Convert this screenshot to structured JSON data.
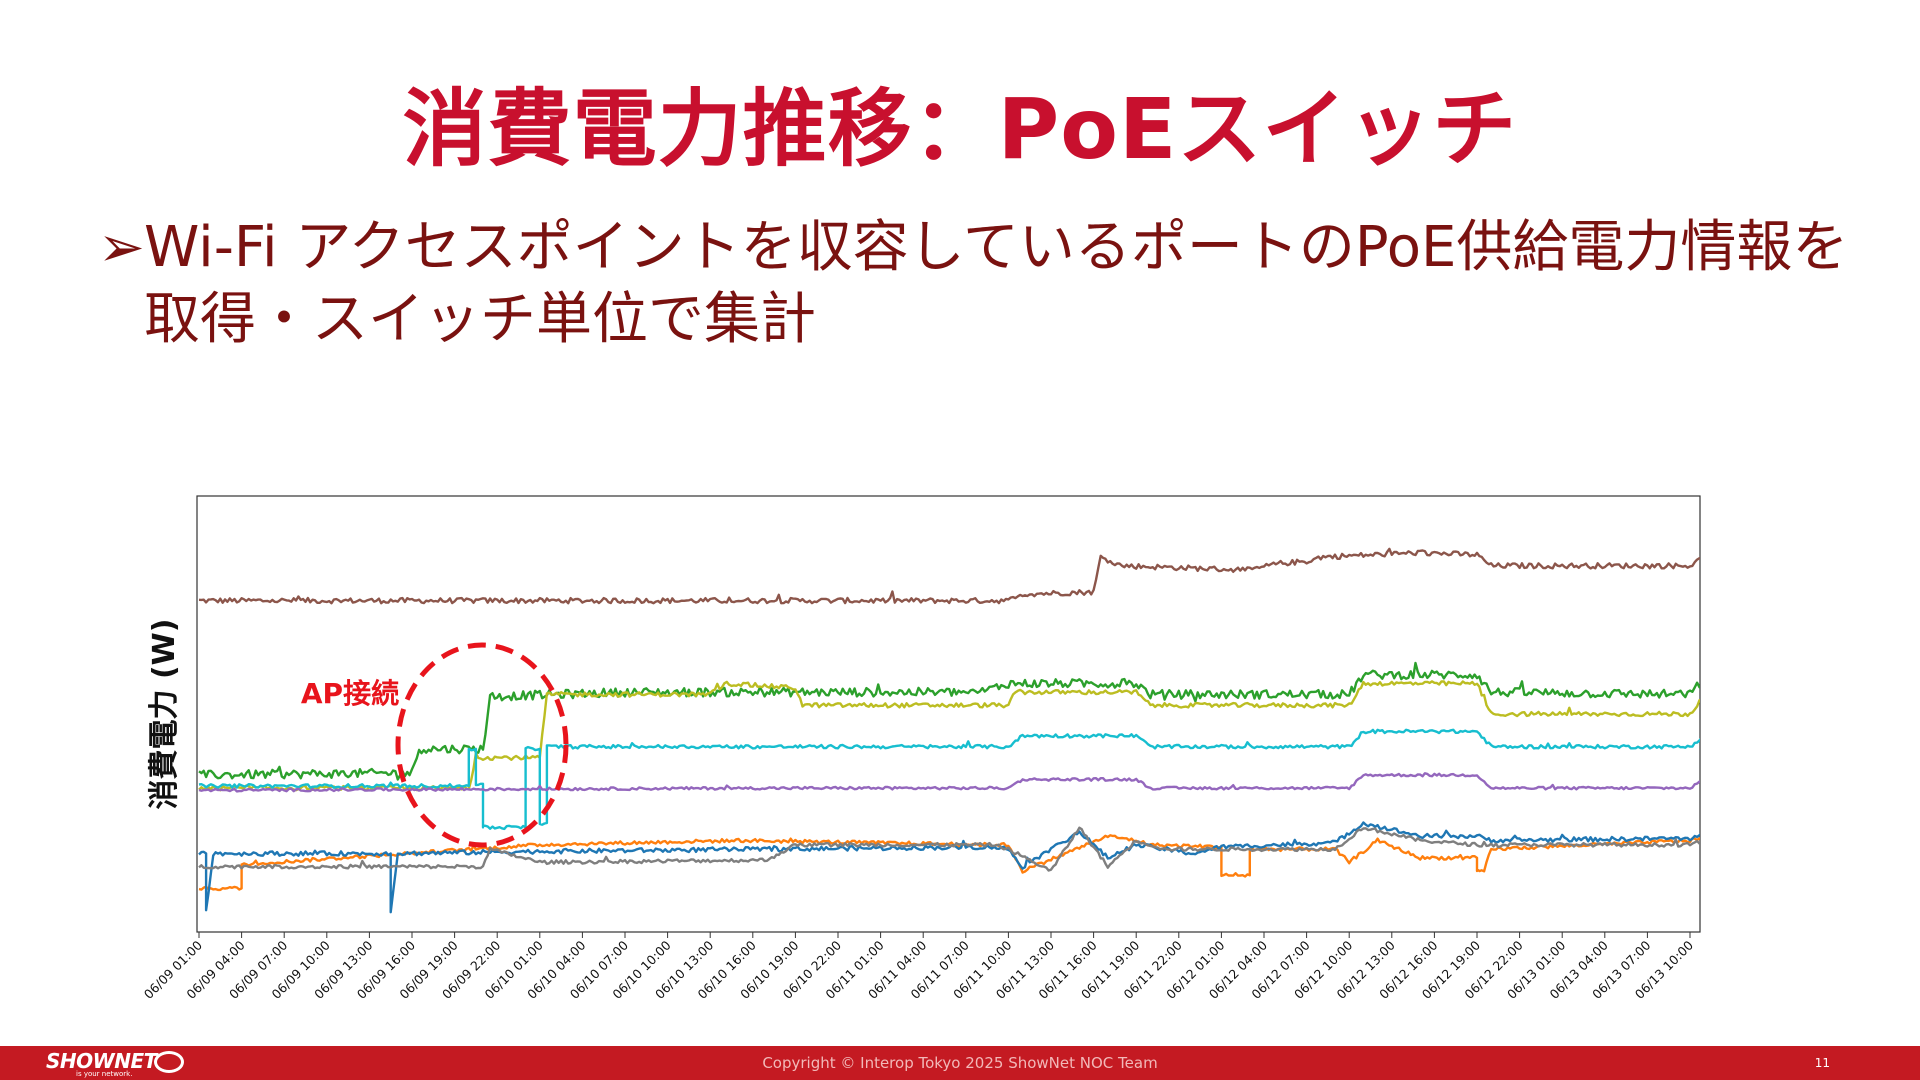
{
  "slide": {
    "title": "消費電力推移：PoEスイッチ",
    "bullet_marker": "➢",
    "bullet_text": "Wi-Fi アクセスポイントを収容しているポートのPoE供給電力情報を取得・スイッチ単位で集計"
  },
  "footer": {
    "logo_text": "SHOWNET",
    "logo_tagline": "is your network.",
    "copyright": "Copyright © Interop Tokyo 2025 ShowNet NOC Team",
    "page_number": "11"
  },
  "colors": {
    "title": "#c8102e",
    "bullet": "#7a1210",
    "footer_bg": "#c41a22",
    "annotation": "#e8141c"
  },
  "chart_data": {
    "type": "line",
    "ylabel": "消費電力 (W)",
    "y_ticks_shown": false,
    "grid": false,
    "legend": "none",
    "annotation": {
      "text": "AP接続",
      "style": "dashed red circle",
      "at_x": 35
    },
    "xlim": [
      0,
      107
    ],
    "ylim": [
      0,
      100
    ],
    "x_ticks": [
      "06/09 01:00",
      "06/09 04:00",
      "06/09 07:00",
      "06/09 10:00",
      "06/09 13:00",
      "06/09 16:00",
      "06/09 19:00",
      "06/09 22:00",
      "06/10 01:00",
      "06/10 04:00",
      "06/10 07:00",
      "06/10 10:00",
      "06/10 13:00",
      "06/10 16:00",
      "06/10 19:00",
      "06/10 22:00",
      "06/11 01:00",
      "06/11 04:00",
      "06/11 07:00",
      "06/11 10:00",
      "06/11 13:00",
      "06/11 16:00",
      "06/11 19:00",
      "06/11 22:00",
      "06/12 01:00",
      "06/12 04:00",
      "06/12 07:00",
      "06/12 10:00",
      "06/12 13:00",
      "06/12 16:00",
      "06/12 19:00",
      "06/12 22:00",
      "06/13 01:00",
      "06/13 04:00",
      "06/13 07:00",
      "06/13 10:00"
    ],
    "x_tick_values": [
      0,
      3,
      6,
      9,
      12,
      15,
      18,
      21,
      24,
      27,
      30,
      33,
      36,
      39,
      42,
      45,
      48,
      51,
      54,
      57,
      60,
      63,
      66,
      69,
      72,
      75,
      78,
      81,
      84,
      87,
      90,
      93,
      96,
      99,
      102,
      105
    ],
    "series": [
      {
        "color": "#8c564b",
        "noise": 0.6,
        "points": [
          [
            0,
            76
          ],
          [
            57,
            76
          ],
          [
            58,
            77.5
          ],
          [
            63,
            78
          ],
          [
            63.5,
            86
          ],
          [
            65,
            84
          ],
          [
            74,
            83
          ],
          [
            76,
            84.5
          ],
          [
            78,
            85
          ],
          [
            79,
            86
          ],
          [
            86,
            87
          ],
          [
            90,
            86.5
          ],
          [
            91,
            84
          ],
          [
            105,
            84
          ],
          [
            106,
            86
          ],
          [
            107,
            87
          ]
        ]
      },
      {
        "color": "#2ca02c",
        "noise": 1.0,
        "points": [
          [
            0,
            36
          ],
          [
            15,
            36.5
          ],
          [
            15.5,
            42
          ],
          [
            20,
            42
          ],
          [
            20.5,
            54
          ],
          [
            30,
            55
          ],
          [
            55,
            55
          ],
          [
            57,
            57
          ],
          [
            66,
            57
          ],
          [
            67,
            54.5
          ],
          [
            81,
            54.5
          ],
          [
            82,
            59
          ],
          [
            90,
            59
          ],
          [
            91,
            55
          ],
          [
            105,
            54.5
          ],
          [
            106,
            58
          ],
          [
            107,
            59
          ]
        ]
      },
      {
        "color": "#bcbd22",
        "noise": 0.5,
        "points": [
          [
            0,
            33
          ],
          [
            18,
            33
          ],
          [
            19,
            33
          ],
          [
            19.5,
            40
          ],
          [
            24,
            40
          ],
          [
            24.5,
            54.5
          ],
          [
            36,
            54.5
          ],
          [
            37,
            57
          ],
          [
            42,
            56
          ],
          [
            42.5,
            52
          ],
          [
            57,
            52
          ],
          [
            57.5,
            55
          ],
          [
            66,
            55
          ],
          [
            67,
            52
          ],
          [
            81,
            52
          ],
          [
            82,
            57
          ],
          [
            90,
            57
          ],
          [
            91,
            50
          ],
          [
            105,
            50
          ],
          [
            106,
            54
          ],
          [
            107,
            56
          ]
        ]
      },
      {
        "color": "#17becf",
        "noise": 0.4,
        "points": [
          [
            0,
            33.5
          ],
          [
            19,
            33.5
          ],
          [
            19,
            42
          ],
          [
            19.5,
            42
          ],
          [
            19.5,
            34
          ],
          [
            20,
            34
          ],
          [
            20,
            24
          ],
          [
            23,
            24
          ],
          [
            23,
            42
          ],
          [
            24,
            42
          ],
          [
            24,
            25
          ],
          [
            24.5,
            25
          ],
          [
            24.5,
            42.5
          ],
          [
            57,
            42.5
          ],
          [
            58,
            45
          ],
          [
            66,
            45
          ],
          [
            67,
            42.5
          ],
          [
            81,
            42.5
          ],
          [
            82,
            46
          ],
          [
            90,
            46
          ],
          [
            91,
            42.5
          ],
          [
            105,
            42.5
          ],
          [
            106,
            45
          ],
          [
            107,
            46
          ]
        ]
      },
      {
        "color": "#9467bd",
        "noise": 0.3,
        "points": [
          [
            0,
            32.5
          ],
          [
            40,
            33
          ],
          [
            57,
            33
          ],
          [
            58,
            35
          ],
          [
            66,
            35
          ],
          [
            67,
            33
          ],
          [
            81,
            33
          ],
          [
            82,
            36
          ],
          [
            90,
            36
          ],
          [
            91,
            33
          ],
          [
            105,
            33
          ],
          [
            106,
            35
          ],
          [
            107,
            35
          ]
        ]
      },
      {
        "color": "#ff7f0e",
        "noise": 0.4,
        "points": [
          [
            0,
            10
          ],
          [
            3,
            10
          ],
          [
            3,
            15.5
          ],
          [
            24,
            20
          ],
          [
            38,
            21
          ],
          [
            56,
            20
          ],
          [
            57,
            20
          ],
          [
            58,
            14
          ],
          [
            64,
            22
          ],
          [
            66,
            21
          ],
          [
            67,
            20
          ],
          [
            72,
            19.5
          ],
          [
            72,
            13
          ],
          [
            74,
            13
          ],
          [
            74,
            19
          ],
          [
            80,
            19
          ],
          [
            81,
            16
          ],
          [
            83,
            21
          ],
          [
            86,
            17
          ],
          [
            90,
            17
          ],
          [
            90,
            14
          ],
          [
            90.5,
            14
          ],
          [
            91,
            19
          ],
          [
            105,
            21
          ],
          [
            107,
            22
          ]
        ]
      },
      {
        "color": "#1f77b4",
        "noise": 0.5,
        "points": [
          [
            0,
            18
          ],
          [
            0.5,
            18
          ],
          [
            0.5,
            5
          ],
          [
            1,
            18
          ],
          [
            13,
            18
          ],
          [
            13.5,
            18
          ],
          [
            13.5,
            5
          ],
          [
            14,
            18
          ],
          [
            24,
            18.5
          ],
          [
            40,
            19
          ],
          [
            56,
            19.5
          ],
          [
            57,
            19
          ],
          [
            58,
            15
          ],
          [
            62,
            23
          ],
          [
            64,
            17
          ],
          [
            66,
            20
          ],
          [
            68,
            19
          ],
          [
            70,
            18
          ],
          [
            72,
            19.5
          ],
          [
            80,
            20.5
          ],
          [
            82,
            25
          ],
          [
            86,
            22
          ],
          [
            90,
            22
          ],
          [
            91,
            21
          ],
          [
            105,
            21.5
          ],
          [
            107,
            23
          ]
        ]
      },
      {
        "color": "#7f7f7f",
        "noise": 0.4,
        "points": [
          [
            0,
            15
          ],
          [
            20,
            15
          ],
          [
            20.5,
            19
          ],
          [
            24,
            16
          ],
          [
            40,
            16.5
          ],
          [
            42,
            20
          ],
          [
            56,
            20
          ],
          [
            57,
            19
          ],
          [
            60,
            14
          ],
          [
            62,
            24
          ],
          [
            64,
            15
          ],
          [
            66,
            21
          ],
          [
            68,
            19
          ],
          [
            72,
            19
          ],
          [
            80,
            19
          ],
          [
            82,
            24
          ],
          [
            86,
            21
          ],
          [
            90,
            20
          ],
          [
            92,
            20
          ],
          [
            105,
            20
          ],
          [
            107,
            22
          ]
        ]
      }
    ]
  }
}
